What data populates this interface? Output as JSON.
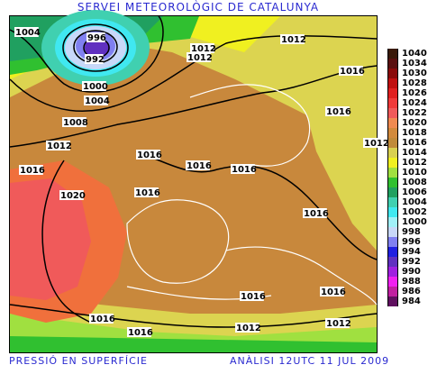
{
  "header": {
    "title": "SERVEI METEOROLÒGIC DE CATALUNYA"
  },
  "footer": {
    "left": "PRESSIÓ EN SUPERFÍCIE",
    "right": "ANÀLISI 12UTC 11 JUL 2009"
  },
  "legend": [
    {
      "label": "1040",
      "color": "#3a1a0a"
    },
    {
      "label": "1034",
      "color": "#5a1010"
    },
    {
      "label": "1030",
      "color": "#8a0a0a"
    },
    {
      "label": "1028",
      "color": "#c01010"
    },
    {
      "label": "1026",
      "color": "#e02020"
    },
    {
      "label": "1024",
      "color": "#f03a3a"
    },
    {
      "label": "1022",
      "color": "#f05a5a"
    },
    {
      "label": "1020",
      "color": "#f08a50"
    },
    {
      "label": "1018",
      "color": "#d28a3c"
    },
    {
      "label": "1016",
      "color": "#c08a3a"
    },
    {
      "label": "1014",
      "color": "#d8d050"
    },
    {
      "label": "1012",
      "color": "#f0f020"
    },
    {
      "label": "1010",
      "color": "#a0e040"
    },
    {
      "label": "1008",
      "color": "#30c030"
    },
    {
      "label": "1006",
      "color": "#20a060"
    },
    {
      "label": "1004",
      "color": "#40d0b0"
    },
    {
      "label": "1002",
      "color": "#40e8f0"
    },
    {
      "label": "1000",
      "color": "#a0f0f8"
    },
    {
      "label": "998",
      "color": "#c8d8f8"
    },
    {
      "label": "996",
      "color": "#8080f0"
    },
    {
      "label": "994",
      "color": "#2020e0"
    },
    {
      "label": "992",
      "color": "#6030c0"
    },
    {
      "label": "990",
      "color": "#a020e0"
    },
    {
      "label": "988",
      "color": "#f020f0"
    },
    {
      "label": "986",
      "color": "#c020a0"
    },
    {
      "label": "984",
      "color": "#601060"
    }
  ],
  "isobar_labels": [
    {
      "text": "1004"
    },
    {
      "text": "996"
    },
    {
      "text": "992"
    },
    {
      "text": "1000"
    },
    {
      "text": "1004"
    },
    {
      "text": "1008"
    },
    {
      "text": "1012"
    },
    {
      "text": "1012"
    },
    {
      "text": "1012"
    },
    {
      "text": "1016"
    },
    {
      "text": "1016"
    },
    {
      "text": "1016"
    },
    {
      "text": "1016"
    },
    {
      "text": "1020"
    },
    {
      "text": "1016"
    },
    {
      "text": "1016"
    },
    {
      "text": "1016"
    },
    {
      "text": "1016"
    },
    {
      "text": "1016"
    },
    {
      "text": "1016"
    },
    {
      "text": "1016"
    },
    {
      "text": "1016"
    },
    {
      "text": "1012"
    },
    {
      "text": "1012"
    },
    {
      "text": "1012"
    },
    {
      "text": "1012"
    }
  ]
}
